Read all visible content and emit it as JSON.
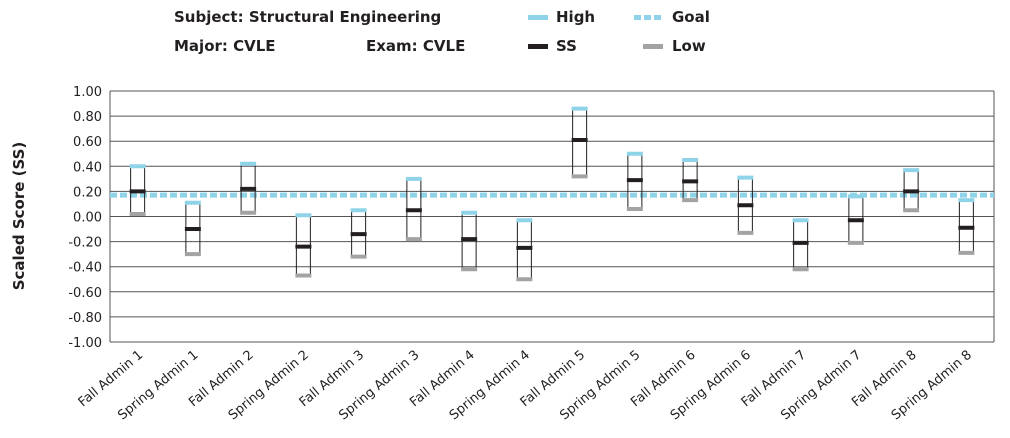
{
  "header": {
    "subject": "Subject: Structural Engineering",
    "major": "Major: CVLE",
    "exam": "Exam: CVLE"
  },
  "legend": {
    "high": "High",
    "goal": "Goal",
    "ss": "SS",
    "low": "Low"
  },
  "colors": {
    "high": "#8fd3e8",
    "goal": "#8fd3e8",
    "ss": "#231f20",
    "low": "#a3a3a3",
    "grid": "#555555",
    "whisker": "#231f20"
  },
  "chart_data": {
    "type": "range_bar",
    "ylabel": "Scaled Score (SS)",
    "xlabel": "",
    "ylim": [
      -1.0,
      1.0
    ],
    "yticks": [
      1.0,
      0.8,
      0.6,
      0.4,
      0.2,
      0.0,
      -0.2,
      -0.4,
      -0.6,
      -0.8,
      -1.0
    ],
    "ytick_labels": [
      "1.00",
      "0.80",
      "0.60",
      "0.40",
      "0.20",
      "0.00",
      "-0.20",
      "-0.40",
      "-0.60",
      "-0.80",
      "-1.00"
    ],
    "grid": true,
    "goal": 0.17,
    "categories": [
      "Fall Admin 1",
      "Spring Admin 1",
      "Fall Admin 2",
      "Spring Admin 2",
      "Fall Admin 3",
      "Spring Admin 3",
      "Fall Admin 4",
      "Spring Admin 4",
      "Fall Admin 5",
      "Spring Admin 5",
      "Fall Admin 6",
      "Spring Admin 6",
      "Fall Admin 7",
      "Spring Admin 7",
      "Fall Admin 8",
      "Spring Admin 8"
    ],
    "series": [
      {
        "name": "High",
        "values": [
          0.4,
          0.11,
          0.42,
          0.01,
          0.05,
          0.3,
          0.03,
          -0.03,
          0.86,
          0.5,
          0.45,
          0.31,
          -0.03,
          0.16,
          0.37,
          0.13
        ]
      },
      {
        "name": "SS",
        "values": [
          0.2,
          -0.1,
          0.22,
          -0.24,
          -0.14,
          0.05,
          -0.18,
          -0.25,
          0.61,
          0.29,
          0.28,
          0.09,
          -0.21,
          -0.03,
          0.2,
          -0.09
        ]
      },
      {
        "name": "Low",
        "values": [
          0.02,
          -0.3,
          0.03,
          -0.47,
          -0.32,
          -0.18,
          -0.42,
          -0.5,
          0.32,
          0.06,
          0.13,
          -0.13,
          -0.42,
          -0.21,
          0.05,
          -0.29
        ]
      }
    ]
  }
}
